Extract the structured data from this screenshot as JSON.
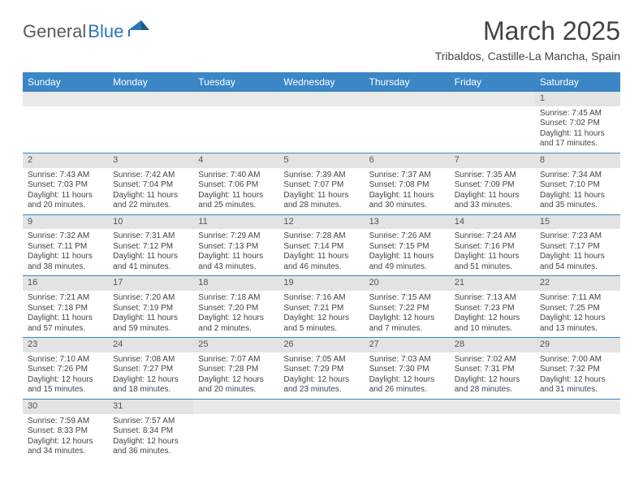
{
  "logo": {
    "general": "General",
    "blue": "Blue",
    "flag_color": "#2d76b5"
  },
  "title": "March 2025",
  "location": "Tribaldos, Castille-La Mancha, Spain",
  "colors": {
    "header_bg": "#3b86c6",
    "header_fg": "#ffffff",
    "daynum_bg": "#e3e3e3",
    "cell_border": "#3b86c6",
    "text": "#444444"
  },
  "day_headers": [
    "Sunday",
    "Monday",
    "Tuesday",
    "Wednesday",
    "Thursday",
    "Friday",
    "Saturday"
  ],
  "weeks": [
    [
      null,
      null,
      null,
      null,
      null,
      null,
      {
        "n": "1",
        "sr": "Sunrise: 7:45 AM",
        "ss": "Sunset: 7:02 PM",
        "dl": "Daylight: 11 hours and 17 minutes."
      }
    ],
    [
      {
        "n": "2",
        "sr": "Sunrise: 7:43 AM",
        "ss": "Sunset: 7:03 PM",
        "dl": "Daylight: 11 hours and 20 minutes."
      },
      {
        "n": "3",
        "sr": "Sunrise: 7:42 AM",
        "ss": "Sunset: 7:04 PM",
        "dl": "Daylight: 11 hours and 22 minutes."
      },
      {
        "n": "4",
        "sr": "Sunrise: 7:40 AM",
        "ss": "Sunset: 7:06 PM",
        "dl": "Daylight: 11 hours and 25 minutes."
      },
      {
        "n": "5",
        "sr": "Sunrise: 7:39 AM",
        "ss": "Sunset: 7:07 PM",
        "dl": "Daylight: 11 hours and 28 minutes."
      },
      {
        "n": "6",
        "sr": "Sunrise: 7:37 AM",
        "ss": "Sunset: 7:08 PM",
        "dl": "Daylight: 11 hours and 30 minutes."
      },
      {
        "n": "7",
        "sr": "Sunrise: 7:35 AM",
        "ss": "Sunset: 7:09 PM",
        "dl": "Daylight: 11 hours and 33 minutes."
      },
      {
        "n": "8",
        "sr": "Sunrise: 7:34 AM",
        "ss": "Sunset: 7:10 PM",
        "dl": "Daylight: 11 hours and 35 minutes."
      }
    ],
    [
      {
        "n": "9",
        "sr": "Sunrise: 7:32 AM",
        "ss": "Sunset: 7:11 PM",
        "dl": "Daylight: 11 hours and 38 minutes."
      },
      {
        "n": "10",
        "sr": "Sunrise: 7:31 AM",
        "ss": "Sunset: 7:12 PM",
        "dl": "Daylight: 11 hours and 41 minutes."
      },
      {
        "n": "11",
        "sr": "Sunrise: 7:29 AM",
        "ss": "Sunset: 7:13 PM",
        "dl": "Daylight: 11 hours and 43 minutes."
      },
      {
        "n": "12",
        "sr": "Sunrise: 7:28 AM",
        "ss": "Sunset: 7:14 PM",
        "dl": "Daylight: 11 hours and 46 minutes."
      },
      {
        "n": "13",
        "sr": "Sunrise: 7:26 AM",
        "ss": "Sunset: 7:15 PM",
        "dl": "Daylight: 11 hours and 49 minutes."
      },
      {
        "n": "14",
        "sr": "Sunrise: 7:24 AM",
        "ss": "Sunset: 7:16 PM",
        "dl": "Daylight: 11 hours and 51 minutes."
      },
      {
        "n": "15",
        "sr": "Sunrise: 7:23 AM",
        "ss": "Sunset: 7:17 PM",
        "dl": "Daylight: 11 hours and 54 minutes."
      }
    ],
    [
      {
        "n": "16",
        "sr": "Sunrise: 7:21 AM",
        "ss": "Sunset: 7:18 PM",
        "dl": "Daylight: 11 hours and 57 minutes."
      },
      {
        "n": "17",
        "sr": "Sunrise: 7:20 AM",
        "ss": "Sunset: 7:19 PM",
        "dl": "Daylight: 11 hours and 59 minutes."
      },
      {
        "n": "18",
        "sr": "Sunrise: 7:18 AM",
        "ss": "Sunset: 7:20 PM",
        "dl": "Daylight: 12 hours and 2 minutes."
      },
      {
        "n": "19",
        "sr": "Sunrise: 7:16 AM",
        "ss": "Sunset: 7:21 PM",
        "dl": "Daylight: 12 hours and 5 minutes."
      },
      {
        "n": "20",
        "sr": "Sunrise: 7:15 AM",
        "ss": "Sunset: 7:22 PM",
        "dl": "Daylight: 12 hours and 7 minutes."
      },
      {
        "n": "21",
        "sr": "Sunrise: 7:13 AM",
        "ss": "Sunset: 7:23 PM",
        "dl": "Daylight: 12 hours and 10 minutes."
      },
      {
        "n": "22",
        "sr": "Sunrise: 7:11 AM",
        "ss": "Sunset: 7:25 PM",
        "dl": "Daylight: 12 hours and 13 minutes."
      }
    ],
    [
      {
        "n": "23",
        "sr": "Sunrise: 7:10 AM",
        "ss": "Sunset: 7:26 PM",
        "dl": "Daylight: 12 hours and 15 minutes."
      },
      {
        "n": "24",
        "sr": "Sunrise: 7:08 AM",
        "ss": "Sunset: 7:27 PM",
        "dl": "Daylight: 12 hours and 18 minutes."
      },
      {
        "n": "25",
        "sr": "Sunrise: 7:07 AM",
        "ss": "Sunset: 7:28 PM",
        "dl": "Daylight: 12 hours and 20 minutes."
      },
      {
        "n": "26",
        "sr": "Sunrise: 7:05 AM",
        "ss": "Sunset: 7:29 PM",
        "dl": "Daylight: 12 hours and 23 minutes."
      },
      {
        "n": "27",
        "sr": "Sunrise: 7:03 AM",
        "ss": "Sunset: 7:30 PM",
        "dl": "Daylight: 12 hours and 26 minutes."
      },
      {
        "n": "28",
        "sr": "Sunrise: 7:02 AM",
        "ss": "Sunset: 7:31 PM",
        "dl": "Daylight: 12 hours and 28 minutes."
      },
      {
        "n": "29",
        "sr": "Sunrise: 7:00 AM",
        "ss": "Sunset: 7:32 PM",
        "dl": "Daylight: 12 hours and 31 minutes."
      }
    ],
    [
      {
        "n": "30",
        "sr": "Sunrise: 7:59 AM",
        "ss": "Sunset: 8:33 PM",
        "dl": "Daylight: 12 hours and 34 minutes."
      },
      {
        "n": "31",
        "sr": "Sunrise: 7:57 AM",
        "ss": "Sunset: 8:34 PM",
        "dl": "Daylight: 12 hours and 36 minutes."
      },
      null,
      null,
      null,
      null,
      null
    ]
  ]
}
